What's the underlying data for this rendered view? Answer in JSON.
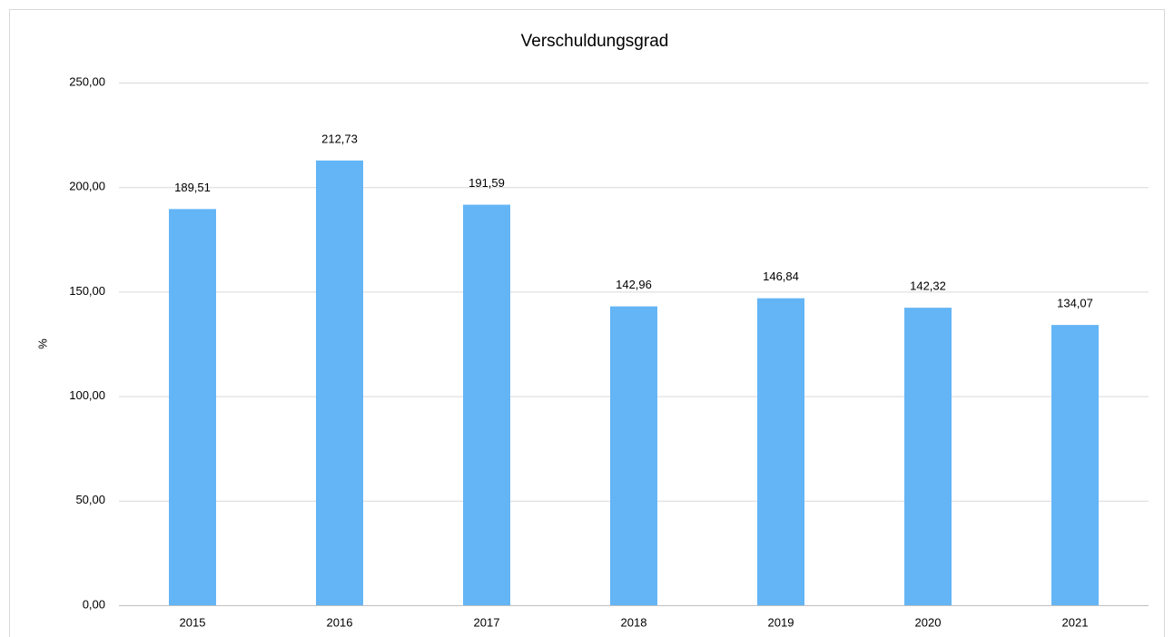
{
  "chart_data": {
    "type": "bar",
    "title": "Verschuldungsgrad",
    "y_label": "%",
    "categories": [
      "2015",
      "2016",
      "2017",
      "2018",
      "2019",
      "2020",
      "2021"
    ],
    "values": [
      189.51,
      212.73,
      191.59,
      142.96,
      146.84,
      142.32,
      134.07
    ],
    "value_labels": [
      "189,51",
      "212,73",
      "191,59",
      "142,96",
      "146,84",
      "142,32",
      "134,07"
    ],
    "color": "#64b5f6",
    "ylim": [
      0,
      250
    ],
    "yticks": [
      {
        "value": 0,
        "label": "0,00"
      },
      {
        "value": 50,
        "label": "50,00"
      },
      {
        "value": 100,
        "label": "100,00"
      },
      {
        "value": 150,
        "label": "150,00"
      },
      {
        "value": 200,
        "label": "200,00"
      },
      {
        "value": 250,
        "label": "250,00"
      }
    ],
    "grid": true
  }
}
